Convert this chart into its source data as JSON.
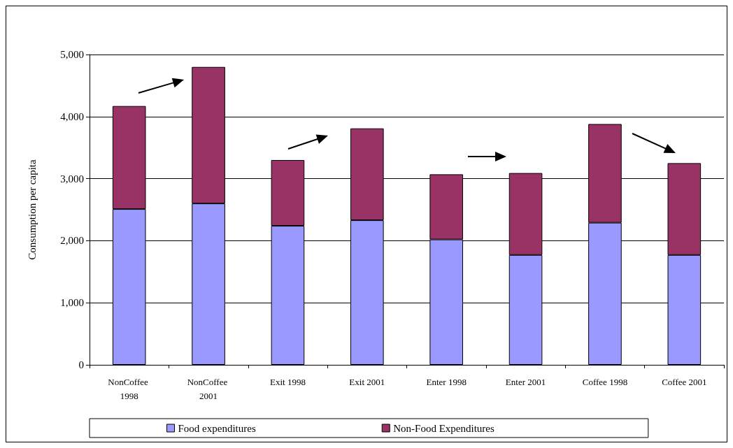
{
  "chart_data": {
    "type": "bar",
    "stacked": true,
    "ylabel": "Consumption per capita",
    "categories": [
      "NonCoffee 1998",
      "NonCoffee 2001",
      "Exit 1998",
      "Exit 2001",
      "Enter 1998",
      "Enter 2001",
      "Coffee 1998",
      "Coffee 2001"
    ],
    "series": [
      {
        "name": "Food expenditures",
        "color": "#9999ff",
        "values": [
          2510,
          2600,
          2240,
          2330,
          2020,
          1770,
          2290,
          1770
        ]
      },
      {
        "name": "Non-Food Expenditures",
        "color": "#993366",
        "values": [
          1660,
          2200,
          1060,
          1480,
          1050,
          1320,
          1590,
          1480
        ]
      }
    ],
    "ylim": [
      0,
      5000
    ],
    "yticks": [
      {
        "value": 0,
        "label": "0"
      },
      {
        "value": 1000,
        "label": "1,000"
      },
      {
        "value": 2000,
        "label": "2,000"
      },
      {
        "value": 3000,
        "label": "3,000"
      },
      {
        "value": 4000,
        "label": "4,000"
      },
      {
        "value": 5000,
        "label": "5,000"
      }
    ],
    "grid": "y",
    "legend": "bottom"
  }
}
